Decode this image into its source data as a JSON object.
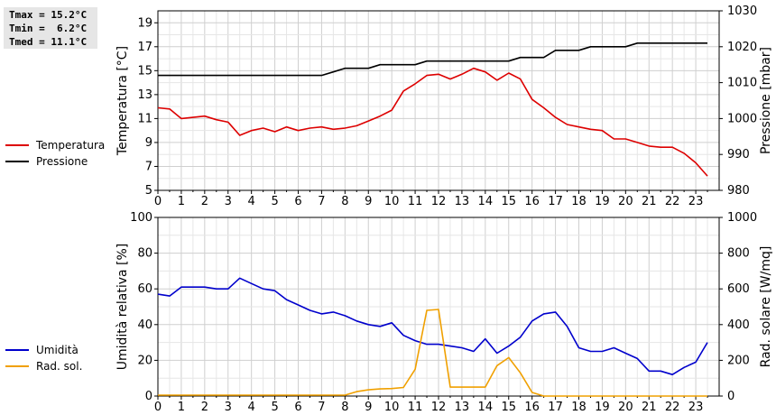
{
  "stats": {
    "tmax": "Tmax = 15.2°C",
    "tmin": "Tmin =  6.2°C",
    "tmed": "Tmed = 11.1°C"
  },
  "chart_data": [
    {
      "type": "line",
      "title": "",
      "xlabel": "",
      "ylabel": "Temperatura [°C]",
      "ylabel_right": "Pressione [mbar]",
      "xlim": [
        0,
        24
      ],
      "ylim": [
        5,
        20
      ],
      "ylim_right": [
        980,
        1030
      ],
      "x_ticks": [
        "0",
        "1",
        "2",
        "3",
        "4",
        "5",
        "6",
        "7",
        "8",
        "9",
        "10",
        "11",
        "12",
        "13",
        "14",
        "15",
        "16",
        "17",
        "18",
        "19",
        "20",
        "21",
        "22",
        "23"
      ],
      "y_ticks": [
        "5",
        "7",
        "9",
        "11",
        "13",
        "15",
        "17",
        "19"
      ],
      "y_ticks_right": [
        "980",
        "990",
        "1000",
        "1010",
        "1020",
        "1030"
      ],
      "grid": true,
      "legend": "left",
      "series": [
        {
          "name": "Temperatura",
          "color": "#dd0000",
          "axis": "left",
          "x": [
            0,
            0.5,
            1,
            1.5,
            2,
            2.5,
            3,
            3.5,
            4,
            4.5,
            5,
            5.5,
            6,
            6.5,
            7,
            7.5,
            8,
            8.5,
            9,
            9.5,
            10,
            10.5,
            11,
            11.5,
            12,
            12.5,
            13,
            13.5,
            14,
            14.5,
            15,
            15.5,
            16,
            16.5,
            17,
            17.5,
            18,
            18.5,
            19,
            19.5,
            20,
            20.5,
            21,
            21.5,
            22,
            22.5,
            23,
            23.5
          ],
          "y": [
            11.9,
            11.8,
            11.0,
            11.1,
            11.2,
            10.9,
            10.7,
            9.6,
            10.0,
            10.2,
            9.9,
            10.3,
            10.0,
            10.2,
            10.3,
            10.1,
            10.2,
            10.4,
            10.8,
            11.2,
            11.7,
            13.3,
            13.9,
            14.6,
            14.7,
            14.3,
            14.7,
            15.2,
            14.9,
            14.2,
            14.8,
            14.3,
            12.6,
            11.9,
            11.1,
            10.5,
            10.3,
            10.1,
            10.0,
            9.3,
            9.3,
            9.0,
            8.7,
            8.6,
            8.6,
            8.1,
            7.3,
            6.2
          ]
        },
        {
          "name": "Pressione",
          "color": "#000000",
          "axis": "right",
          "x": [
            0,
            7,
            7.5,
            8,
            9,
            9.5,
            10,
            11,
            11.5,
            12,
            15,
            15.5,
            16,
            16.5,
            17,
            18,
            18.5,
            19,
            20,
            20.5,
            21,
            23.5
          ],
          "y": [
            1012,
            1012,
            1013,
            1014,
            1014,
            1015,
            1015,
            1015,
            1016,
            1016,
            1016,
            1017,
            1017,
            1017,
            1019,
            1019,
            1020,
            1020,
            1020,
            1021,
            1021,
            1021
          ]
        }
      ]
    },
    {
      "type": "line",
      "title": "",
      "xlabel": "",
      "ylabel": "Umidità relativa [%]",
      "ylabel_right": "Rad. solare [W/mq]",
      "xlim": [
        0,
        24
      ],
      "ylim": [
        0,
        100
      ],
      "ylim_right": [
        0,
        1000
      ],
      "x_ticks": [
        "0",
        "1",
        "2",
        "3",
        "4",
        "5",
        "6",
        "7",
        "8",
        "9",
        "10",
        "11",
        "12",
        "13",
        "14",
        "15",
        "16",
        "17",
        "18",
        "19",
        "20",
        "21",
        "22",
        "23"
      ],
      "y_ticks": [
        "0",
        "20",
        "40",
        "60",
        "80",
        "100"
      ],
      "y_ticks_right": [
        "0",
        "200",
        "400",
        "600",
        "800",
        "1000"
      ],
      "grid": true,
      "legend": "left",
      "series": [
        {
          "name": "Umidità",
          "color": "#0000cc",
          "axis": "left",
          "x": [
            0,
            0.5,
            1,
            1.5,
            2,
            2.5,
            3,
            3.5,
            4,
            4.5,
            5,
            5.5,
            6,
            6.5,
            7,
            7.5,
            8,
            8.5,
            9,
            9.5,
            10,
            10.5,
            11,
            11.5,
            12,
            12.5,
            13,
            13.5,
            14,
            14.5,
            15,
            15.5,
            16,
            16.5,
            17,
            17.5,
            18,
            18.5,
            19,
            19.5,
            20,
            20.5,
            21,
            21.5,
            22,
            22.5,
            23,
            23.5
          ],
          "y": [
            57,
            56,
            61,
            61,
            61,
            60,
            60,
            66,
            63,
            60,
            59,
            54,
            51,
            48,
            46,
            47,
            45,
            42,
            40,
            39,
            41,
            34,
            31,
            29,
            29,
            28,
            27,
            25,
            32,
            24,
            28,
            33,
            42,
            46,
            47,
            39,
            27,
            25,
            25,
            27,
            24,
            21,
            14,
            14,
            12,
            16,
            19,
            30
          ]
        },
        {
          "name": "Rad. sol.",
          "color": "#f0a000",
          "axis": "right",
          "x": [
            0,
            1,
            2,
            3,
            4,
            5,
            6,
            7,
            8,
            8.5,
            9,
            9.5,
            10,
            10.5,
            11,
            11.5,
            12,
            12.5,
            13,
            13.5,
            14,
            14.5,
            15,
            15.5,
            16,
            16.5,
            17,
            18,
            19,
            20,
            21,
            22,
            23,
            23.5
          ],
          "y": [
            5,
            5,
            5,
            5,
            5,
            5,
            5,
            5,
            5,
            25,
            35,
            40,
            42,
            48,
            150,
            480,
            485,
            50,
            50,
            50,
            50,
            170,
            215,
            130,
            20,
            0,
            0,
            0,
            0,
            0,
            0,
            0,
            0,
            0
          ]
        }
      ]
    }
  ]
}
